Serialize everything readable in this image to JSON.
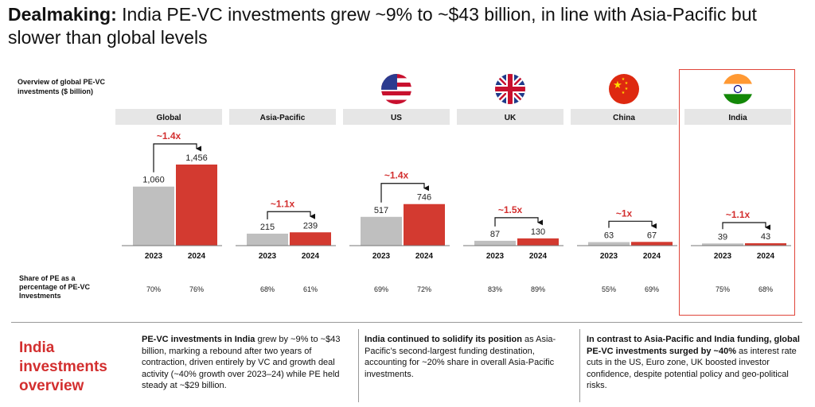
{
  "title": {
    "bold": "Dealmaking:",
    "rest": " India PE-VC investments grew ~9% to ~$43 billion, in line with Asia-Pacific but slower than global levels"
  },
  "overview_label": "Overview of global PE-VC investments ($ billion)",
  "share_label": "Share of PE as a percentage of PE-VC Investments",
  "colors": {
    "bar_2023": "#bfbfbf",
    "bar_2024": "#d33a30",
    "accent": "#d32f2f",
    "header_bg": "#e6e6e6"
  },
  "chart_data": {
    "type": "bar",
    "title": "Overview of global PE-VC investments ($ billion)",
    "ylabel": "$ billion",
    "xlabel": "",
    "ylim": [
      0,
      1500
    ],
    "series_names": [
      "2023",
      "2024"
    ],
    "groups": [
      {
        "name": "Global",
        "values": [
          1060,
          1456
        ],
        "labels": [
          "1,060",
          "1,456"
        ],
        "multiplier": "~1.4x",
        "share": [
          "70%",
          "76%"
        ],
        "flag": "global"
      },
      {
        "name": "Asia-Pacific",
        "values": [
          215,
          239
        ],
        "labels": [
          "215",
          "239"
        ],
        "multiplier": "~1.1x",
        "share": [
          "68%",
          "61%"
        ],
        "flag": "asia-pacific"
      },
      {
        "name": "US",
        "values": [
          517,
          746
        ],
        "labels": [
          "517",
          "746"
        ],
        "multiplier": "~1.4x",
        "share": [
          "69%",
          "72%"
        ],
        "flag": "us-flag"
      },
      {
        "name": "UK",
        "values": [
          87,
          130
        ],
        "labels": [
          "87",
          "130"
        ],
        "multiplier": "~1.5x",
        "share": [
          "83%",
          "89%"
        ],
        "flag": "uk-flag"
      },
      {
        "name": "China",
        "values": [
          63,
          67
        ],
        "labels": [
          "63",
          "67"
        ],
        "multiplier": "~1x",
        "share": [
          "55%",
          "69%"
        ],
        "flag": "china-flag"
      },
      {
        "name": "India",
        "values": [
          39,
          43
        ],
        "labels": [
          "39",
          "43"
        ],
        "multiplier": "~1.1x",
        "share": [
          "75%",
          "68%"
        ],
        "flag": "india-flag"
      }
    ]
  },
  "overview": {
    "title": "India investments overview",
    "col1": {
      "bold": "PE-VC investments in India",
      "rest": " grew by ~9% to ~$43 billion, marking a rebound after two years of contraction, driven entirely by VC and growth deal activity (~40% growth over 2023–24) while PE held steady at ~$29 billion."
    },
    "col2": {
      "bold": "India continued to solidify its position",
      "rest": " as Asia-Pacific’s second-largest funding destination, accounting for ~20% share in overall Asia-Pacific investments."
    },
    "col3": {
      "bold": "In contrast to Asia-Pacific and India funding, global PE-VC investments surged by ~40%",
      "rest": " as interest rate cuts in the US, Euro zone, UK boosted investor confidence, despite potential policy and geo-political risks."
    }
  }
}
